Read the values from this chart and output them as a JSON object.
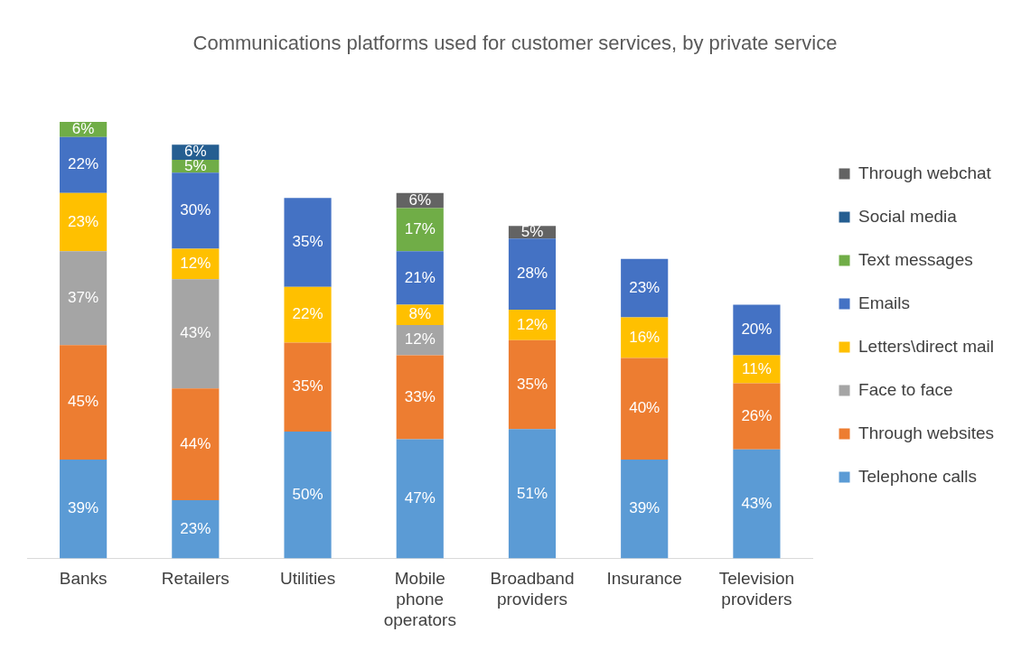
{
  "chart_data": {
    "type": "bar",
    "title": "Communications platforms used for customer services, by private service",
    "stacked": true,
    "legend": "right",
    "grid": false,
    "categories": [
      "Banks",
      "Retailers",
      "Utilities",
      "Mobile phone operators",
      "Broadband providers",
      "Insurance",
      "Television providers"
    ],
    "series": [
      {
        "name": "Telephone calls",
        "color": "#5b9bd5",
        "values": [
          39,
          23,
          50,
          47,
          51,
          39,
          43
        ],
        "value_labels": [
          "39%",
          "23%",
          "50%",
          "47%",
          "51%",
          "39%",
          "43%"
        ]
      },
      {
        "name": "Through websites",
        "color": "#ed7d31",
        "values": [
          45,
          44,
          35,
          33,
          35,
          40,
          26
        ],
        "value_labels": [
          "45%",
          "44%",
          "35%",
          "33%",
          "35%",
          "40%",
          "26%"
        ]
      },
      {
        "name": "Face to face",
        "color": "#a5a5a5",
        "values": [
          37,
          43,
          null,
          12,
          null,
          null,
          null
        ],
        "value_labels": [
          "37%",
          "43%",
          null,
          "12%",
          null,
          null,
          null
        ]
      },
      {
        "name": "Letters\\direct mail",
        "color": "#ffc000",
        "values": [
          23,
          12,
          22,
          8,
          12,
          16,
          11
        ],
        "value_labels": [
          "23%",
          "12%",
          "22%",
          "8%",
          "12%",
          "16%",
          "11%"
        ]
      },
      {
        "name": "Emails",
        "color": "#4472c4",
        "values": [
          22,
          30,
          35,
          21,
          28,
          23,
          20
        ],
        "value_labels": [
          "22%",
          "30%",
          "35%",
          "21%",
          "28%",
          "23%",
          "20%"
        ]
      },
      {
        "name": "Text messages",
        "color": "#70ad47",
        "values": [
          6,
          5,
          null,
          17,
          null,
          null,
          null
        ],
        "value_labels": [
          "6%",
          "5%",
          null,
          "17%",
          null,
          null,
          null
        ]
      },
      {
        "name": "Social media",
        "color": "#255e91",
        "values": [
          null,
          6,
          null,
          null,
          null,
          null,
          null
        ],
        "value_labels": [
          null,
          "6%",
          null,
          null,
          null,
          null,
          null
        ]
      },
      {
        "name": "Through webchat",
        "color": "#636363",
        "values": [
          null,
          null,
          null,
          6,
          5,
          null,
          null
        ],
        "value_labels": [
          null,
          null,
          null,
          "6%",
          "5%",
          null,
          null
        ]
      }
    ]
  }
}
